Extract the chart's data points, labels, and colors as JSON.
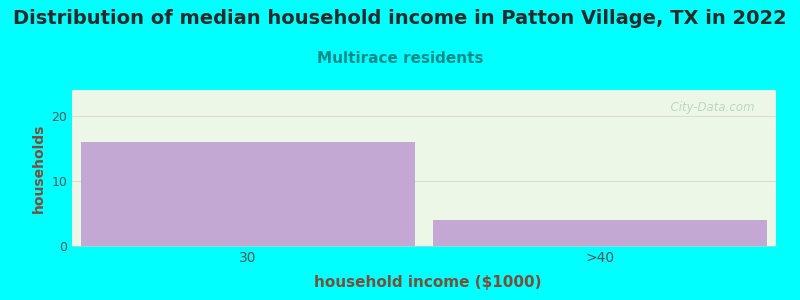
{
  "title": "Distribution of median household income in Patton Village, TX in 2022",
  "subtitle": "Multirace residents",
  "xlabel": "household income ($1000)",
  "ylabel": "households",
  "categories": [
    "30",
    ">40"
  ],
  "values": [
    16,
    4
  ],
  "bar_color": "#c4a8d4",
  "bg_color": "#00ffff",
  "plot_bg_color": "#edf7e8",
  "ylim": [
    0,
    24
  ],
  "yticks": [
    0,
    10,
    20
  ],
  "title_fontsize": 14,
  "subtitle_fontsize": 11,
  "subtitle_color": "#008b8b",
  "axis_label_color": "#7a4f3a",
  "tick_color": "#555555",
  "watermark": "  City-Data.com",
  "grid_color": "#ddddcc"
}
